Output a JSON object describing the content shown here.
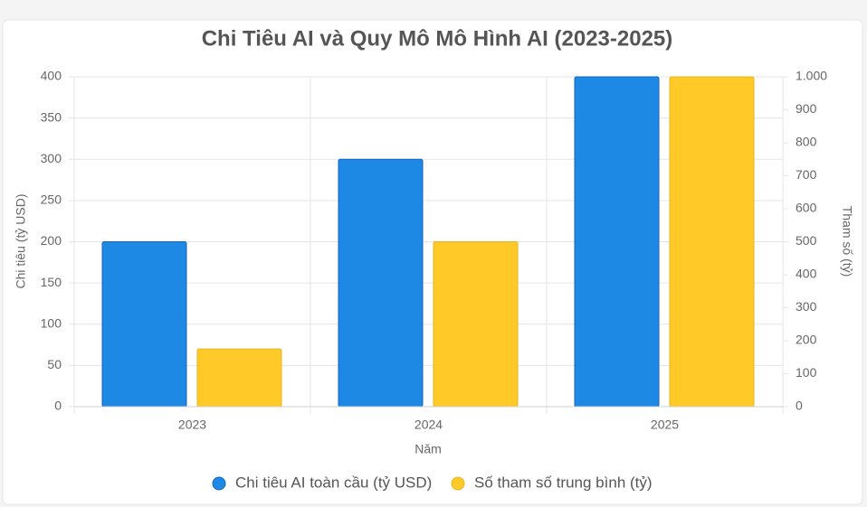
{
  "chart_data": {
    "type": "bar",
    "title": "Chi Tiêu AI và Quy Mô Mô Hình AI (2023-2025)",
    "x_label": "Năm",
    "y_label": "Chi tiêu (tỷ USD)",
    "y2_label": "Tham số (tỷ)",
    "categories": [
      "2023",
      "2024",
      "2025"
    ],
    "series": [
      {
        "name": "Chi tiêu AI toàn cầu (tỷ USD)",
        "color": "#1e88e5",
        "values": [
          200,
          300,
          400
        ]
      },
      {
        "name": "Số tham số trung bình (tỷ)",
        "color": "#ffca28",
        "values": [
          175,
          500,
          1000
        ],
        "axis": "y2"
      }
    ],
    "ylim": [
      0,
      400
    ],
    "yticks": [
      0,
      50,
      100,
      150,
      200,
      250,
      300,
      350,
      400
    ],
    "y2lim": [
      0,
      1000
    ],
    "y2ticks": [
      0,
      100,
      200,
      300,
      400,
      500,
      600,
      700,
      800,
      900,
      {
        "value": 1000,
        "label": "1.000"
      }
    ],
    "grid": true,
    "legend": "bottom"
  }
}
